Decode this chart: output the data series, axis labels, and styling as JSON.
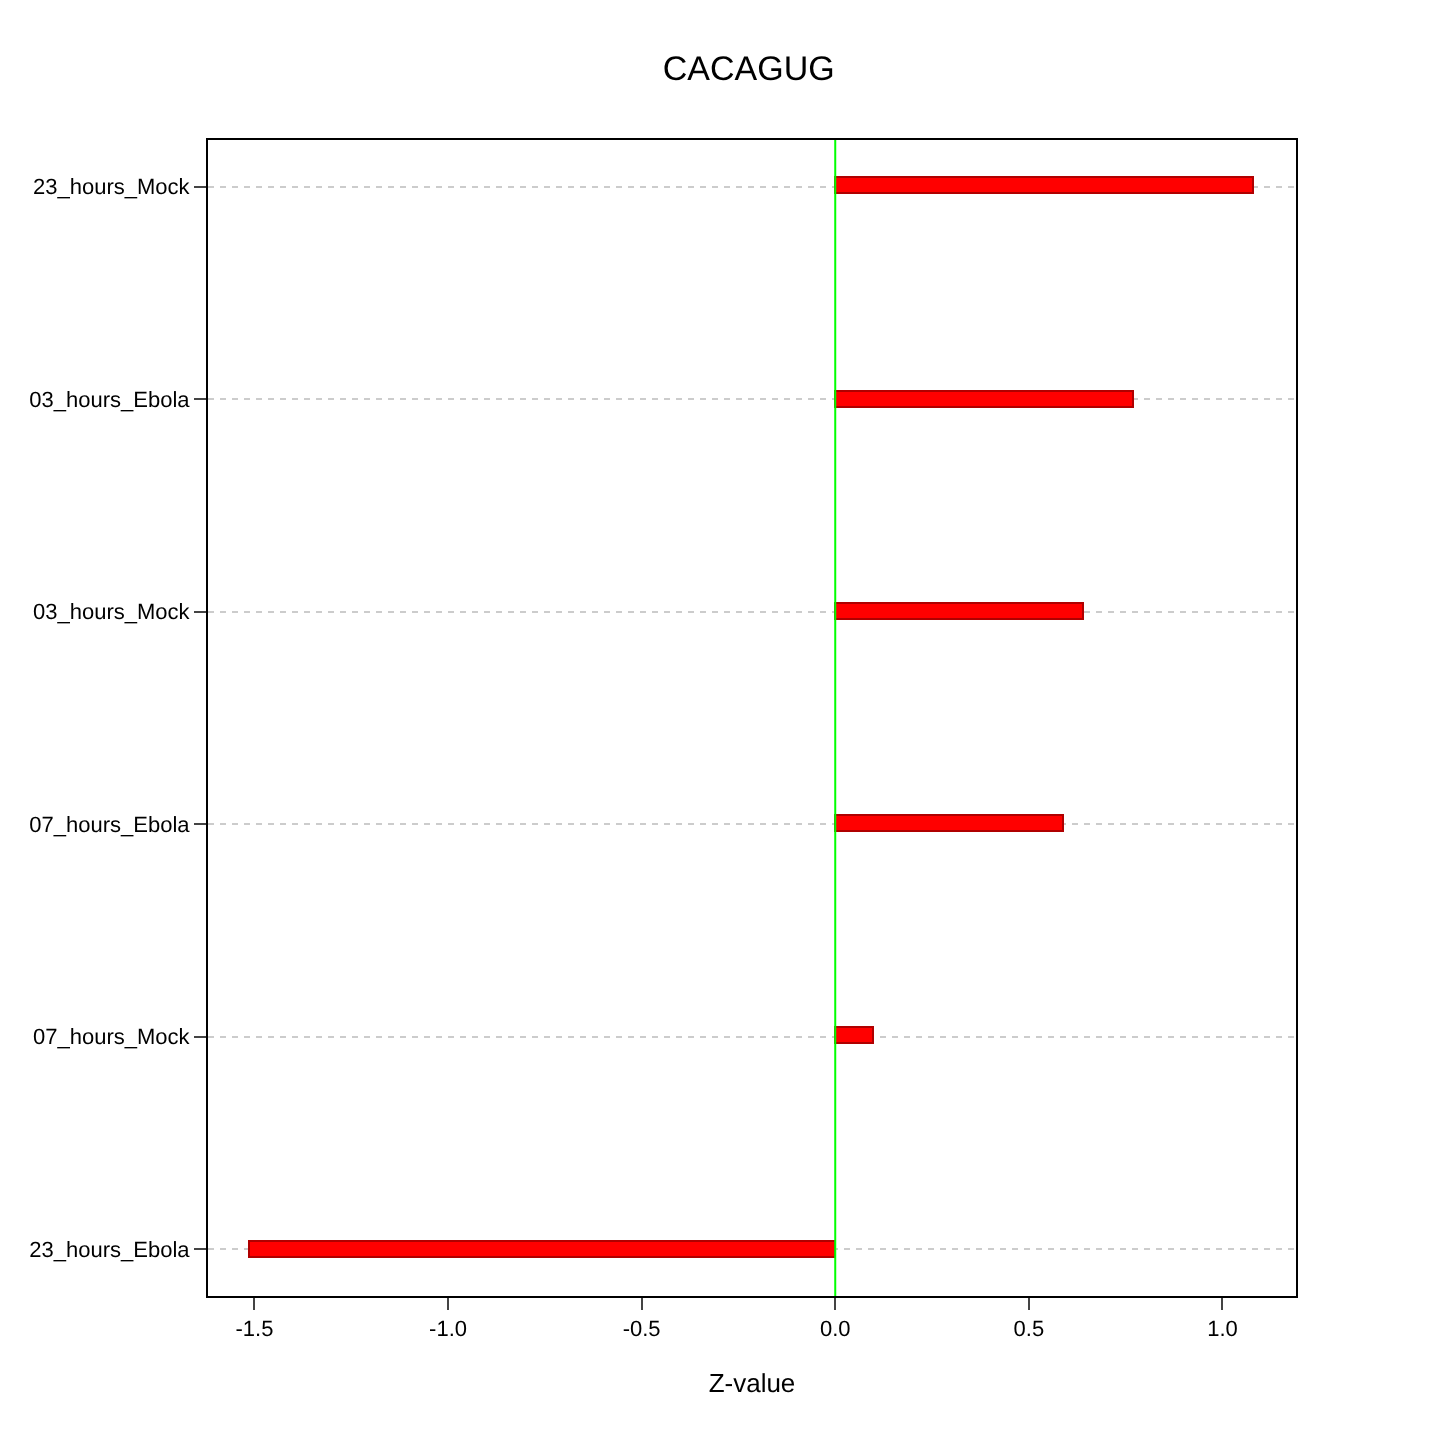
{
  "chart_data": {
    "type": "bar",
    "orientation": "horizontal",
    "title": "CACAGUG",
    "xlabel": "Z-value",
    "categories": [
      "23_hours_Mock",
      "03_hours_Ebola",
      "03_hours_Mock",
      "07_hours_Ebola",
      "07_hours_Mock",
      "23_hours_Ebola"
    ],
    "values": [
      1.08,
      0.77,
      0.64,
      0.59,
      0.1,
      -1.51
    ],
    "color": "#ff0000",
    "xlim": [
      -1.62,
      1.19
    ],
    "xticks": [
      {
        "value": -1.5,
        "label": "-1.5"
      },
      {
        "value": -1.0,
        "label": "-1.0"
      },
      {
        "value": -0.5,
        "label": "-0.5"
      },
      {
        "value": 0.0,
        "label": "0.0"
      },
      {
        "value": 0.5,
        "label": "0.5"
      },
      {
        "value": 1.0,
        "label": "1.0"
      }
    ],
    "ref_lines": [
      {
        "axis": "x",
        "value": 0,
        "color": "#00ff00"
      }
    ],
    "grid": "y"
  }
}
